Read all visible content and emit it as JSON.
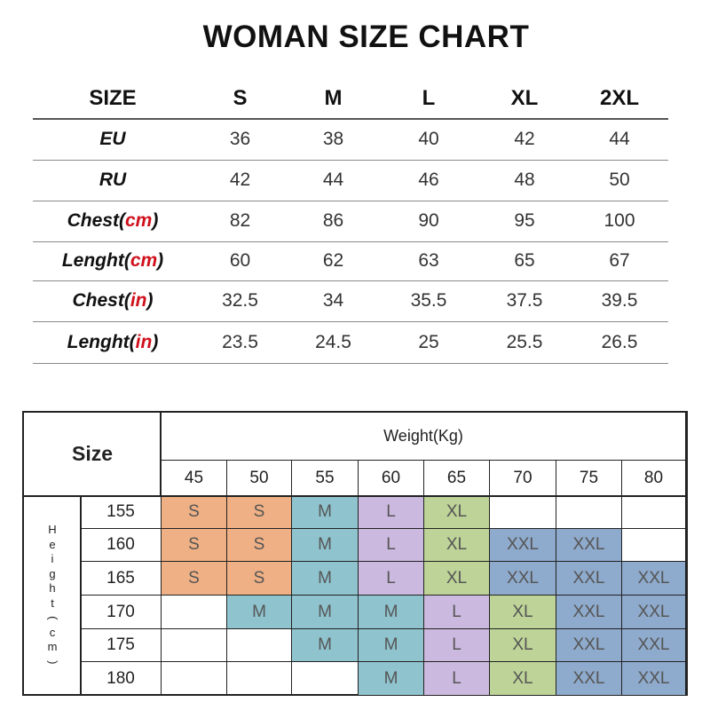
{
  "title": "WOMAN SIZE CHART",
  "size_table": {
    "header_label": "SIZE",
    "sizes": [
      "S",
      "M",
      "L",
      "XL",
      "2XL"
    ],
    "rows": [
      {
        "label": "EU",
        "unit": "",
        "values": [
          "36",
          "38",
          "40",
          "42",
          "44"
        ]
      },
      {
        "label": "RU",
        "unit": "",
        "values": [
          "42",
          "44",
          "46",
          "48",
          "50"
        ]
      },
      {
        "label": "Chest",
        "unit": "cm",
        "values": [
          "82",
          "86",
          "90",
          "95",
          "100"
        ]
      },
      {
        "label": "Lenght",
        "unit": "cm",
        "values": [
          "60",
          "62",
          "63",
          "65",
          "67"
        ]
      },
      {
        "label": "Chest",
        "unit": "in",
        "values": [
          "32.5",
          "34",
          "35.5",
          "37.5",
          "39.5"
        ]
      },
      {
        "label": "Lenght",
        "unit": "in",
        "values": [
          "23.5",
          "24.5",
          "25",
          "25.5",
          "26.5"
        ]
      }
    ]
  },
  "weight_grid": {
    "size_label": "Size",
    "weight_label": "Weight(Kg)",
    "height_label_chars": [
      "H",
      "e",
      "i",
      "g",
      "h",
      "t",
      "(",
      "c",
      "m",
      ")"
    ],
    "weights": [
      "45",
      "50",
      "55",
      "60",
      "65",
      "70",
      "75",
      "80"
    ],
    "heights": [
      "155",
      "160",
      "165",
      "170",
      "175",
      "180"
    ],
    "cells": [
      [
        "S",
        "S",
        "M",
        "L",
        "XL",
        "",
        "",
        ""
      ],
      [
        "S",
        "S",
        "M",
        "L",
        "XL",
        "XXL",
        "XXL",
        ""
      ],
      [
        "S",
        "S",
        "M",
        "L",
        "XL",
        "XXL",
        "XXL",
        "XXL"
      ],
      [
        "",
        "M",
        "M",
        "M",
        "L",
        "XL",
        "XXL",
        "XXL"
      ],
      [
        "",
        "",
        "M",
        "M",
        "L",
        "XL",
        "XXL",
        "XXL"
      ],
      [
        "",
        "",
        "",
        "M",
        "L",
        "XL",
        "XXL",
        "XXL"
      ]
    ],
    "size_colors": {
      "S": "#eeb084",
      "M": "#8fc4cf",
      "L": "#cbb9df",
      "XL": "#bdd397",
      "XXL": "#8eaacc"
    }
  }
}
